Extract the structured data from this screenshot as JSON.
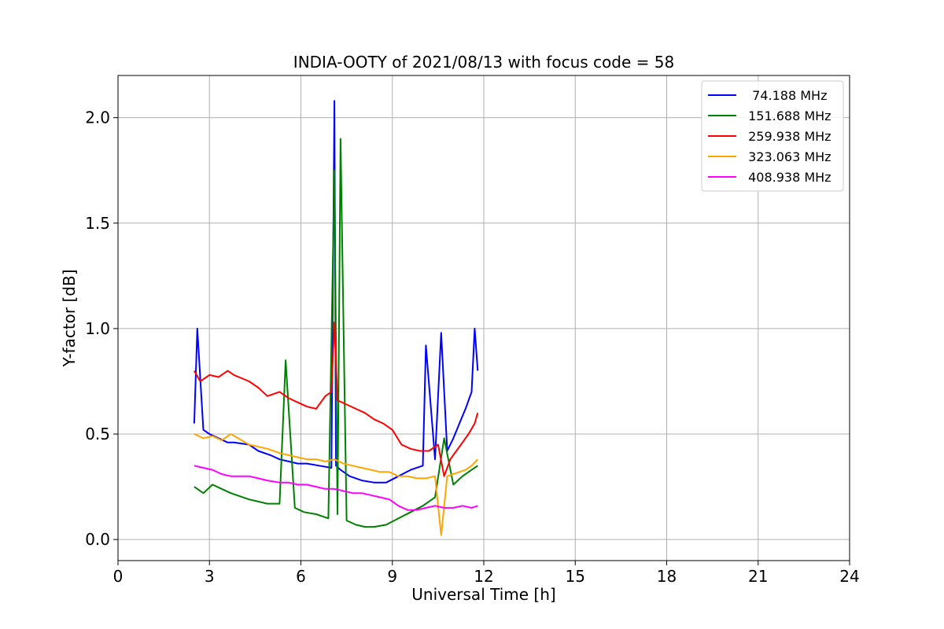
{
  "chart_data": {
    "type": "line",
    "title": "INDIA-OOTY of 2021/08/13 with focus code = 58",
    "xlabel": "Universal Time [h]",
    "ylabel": "Y-factor [dB]",
    "xlim": [
      0,
      24
    ],
    "ylim": [
      -0.1,
      2.2
    ],
    "xticks": [
      0,
      3,
      6,
      9,
      12,
      15,
      18,
      21,
      24
    ],
    "xtick_labels": [
      "0",
      "3",
      "6",
      "9",
      "12",
      "15",
      "18",
      "21",
      "24"
    ],
    "yticks": [
      0.0,
      0.5,
      1.0,
      1.5,
      2.0
    ],
    "ytick_labels": [
      "0.0",
      "0.5",
      "1.0",
      "1.5",
      "2.0"
    ],
    "grid": true,
    "legend_position": "top-right",
    "series": [
      {
        "name": "  74.188 MHz",
        "color": "#0000ff",
        "x": [
          2.5,
          2.6,
          2.8,
          3.0,
          3.3,
          3.6,
          3.8,
          4.3,
          4.6,
          5.0,
          5.3,
          5.6,
          5.9,
          6.2,
          6.6,
          7.0,
          7.1,
          7.15,
          7.3,
          7.6,
          8.0,
          8.4,
          8.8,
          9.2,
          9.6,
          10.0,
          10.1,
          10.4,
          10.6,
          10.8,
          11.0,
          11.2,
          11.4,
          11.6,
          11.7,
          11.8
        ],
        "y": [
          0.55,
          1.0,
          0.52,
          0.5,
          0.48,
          0.46,
          0.46,
          0.45,
          0.42,
          0.4,
          0.38,
          0.37,
          0.36,
          0.36,
          0.35,
          0.34,
          2.08,
          0.35,
          0.33,
          0.3,
          0.28,
          0.27,
          0.27,
          0.3,
          0.33,
          0.35,
          0.92,
          0.38,
          0.98,
          0.42,
          0.48,
          0.55,
          0.62,
          0.7,
          1.0,
          0.8
        ]
      },
      {
        "name": " 151.688 MHz",
        "color": "#008000",
        "x": [
          2.5,
          2.8,
          3.1,
          3.4,
          3.7,
          4.3,
          4.6,
          4.9,
          5.3,
          5.5,
          5.8,
          6.1,
          6.5,
          6.9,
          7.1,
          7.2,
          7.3,
          7.5,
          7.8,
          8.1,
          8.4,
          8.8,
          9.2,
          9.6,
          10.0,
          10.4,
          10.7,
          11.0,
          11.3,
          11.6,
          11.8
        ],
        "y": [
          0.25,
          0.22,
          0.26,
          0.24,
          0.22,
          0.19,
          0.18,
          0.17,
          0.17,
          0.85,
          0.15,
          0.13,
          0.12,
          0.1,
          1.75,
          0.12,
          1.9,
          0.09,
          0.07,
          0.06,
          0.06,
          0.07,
          0.1,
          0.13,
          0.16,
          0.2,
          0.48,
          0.26,
          0.3,
          0.33,
          0.35
        ]
      },
      {
        "name": " 259.938 MHz",
        "color": "#ff0000",
        "x": [
          2.5,
          2.7,
          3.0,
          3.3,
          3.6,
          3.8,
          4.3,
          4.6,
          4.9,
          5.3,
          5.6,
          5.9,
          6.2,
          6.5,
          6.8,
          7.0,
          7.1,
          7.2,
          7.5,
          7.8,
          8.1,
          8.4,
          8.7,
          9.0,
          9.3,
          9.6,
          9.9,
          10.2,
          10.5,
          10.7,
          10.9,
          11.1,
          11.3,
          11.5,
          11.7,
          11.8
        ],
        "y": [
          0.8,
          0.75,
          0.78,
          0.77,
          0.8,
          0.78,
          0.75,
          0.72,
          0.68,
          0.7,
          0.67,
          0.65,
          0.63,
          0.62,
          0.68,
          0.7,
          1.03,
          0.66,
          0.64,
          0.62,
          0.6,
          0.57,
          0.55,
          0.52,
          0.45,
          0.43,
          0.42,
          0.42,
          0.45,
          0.3,
          0.38,
          0.42,
          0.46,
          0.5,
          0.55,
          0.6
        ]
      },
      {
        "name": " 323.063 MHz",
        "color": "#ffa500",
        "x": [
          2.5,
          2.8,
          3.1,
          3.4,
          3.7,
          4.3,
          4.6,
          4.9,
          5.3,
          5.6,
          5.9,
          6.2,
          6.5,
          6.8,
          7.1,
          7.4,
          7.7,
          8.0,
          8.3,
          8.6,
          8.9,
          9.2,
          9.5,
          9.8,
          10.1,
          10.4,
          10.6,
          10.8,
          11.0,
          11.2,
          11.4,
          11.6,
          11.8
        ],
        "y": [
          0.5,
          0.48,
          0.49,
          0.47,
          0.5,
          0.45,
          0.44,
          0.43,
          0.41,
          0.4,
          0.39,
          0.38,
          0.38,
          0.37,
          0.38,
          0.36,
          0.35,
          0.34,
          0.33,
          0.32,
          0.32,
          0.3,
          0.3,
          0.29,
          0.29,
          0.3,
          0.02,
          0.3,
          0.31,
          0.32,
          0.33,
          0.35,
          0.38
        ]
      },
      {
        "name": " 408.938 MHz",
        "color": "#ff00ff",
        "x": [
          2.5,
          2.8,
          3.1,
          3.4,
          3.7,
          4.3,
          4.6,
          4.9,
          5.3,
          5.6,
          5.9,
          6.2,
          6.5,
          6.8,
          7.1,
          7.4,
          7.7,
          8.0,
          8.3,
          8.6,
          8.9,
          9.2,
          9.5,
          9.8,
          10.1,
          10.4,
          10.7,
          11.0,
          11.3,
          11.6,
          11.8
        ],
        "y": [
          0.35,
          0.34,
          0.33,
          0.31,
          0.3,
          0.3,
          0.29,
          0.28,
          0.27,
          0.27,
          0.26,
          0.26,
          0.25,
          0.24,
          0.24,
          0.23,
          0.22,
          0.22,
          0.21,
          0.2,
          0.19,
          0.16,
          0.14,
          0.14,
          0.15,
          0.16,
          0.15,
          0.15,
          0.16,
          0.15,
          0.16
        ]
      }
    ]
  }
}
